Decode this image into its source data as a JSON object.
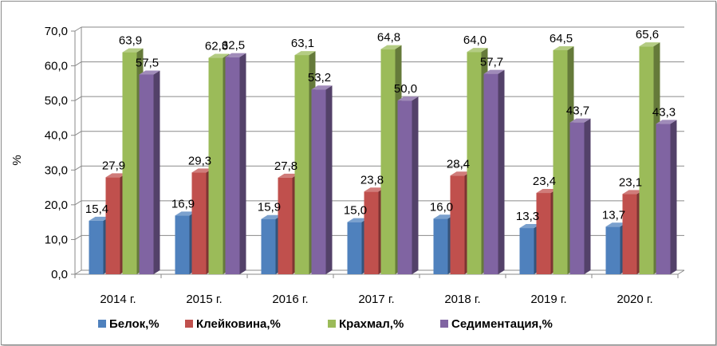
{
  "chart_data": {
    "type": "bar",
    "ylabel": "%",
    "ylim": [
      0,
      70
    ],
    "ytick_step": 10,
    "y_tick_labels": [
      "0,0",
      "10,0",
      "20,0",
      "30,0",
      "40,0",
      "50,0",
      "60,0",
      "70,0"
    ],
    "grid": true,
    "legend_position": "bottom",
    "categories": [
      "2014 г.",
      "2015 г.",
      "2016 г.",
      "2017 г.",
      "2018 г.",
      "2019 г.",
      "2020 г."
    ],
    "series": [
      {
        "name": "Белок,%",
        "color": "#4f81bd",
        "values": [
          15.4,
          16.9,
          15.9,
          15.0,
          16.0,
          13.3,
          13.7
        ],
        "labels": [
          "15,4",
          "16,9",
          "15,9",
          "15,0",
          "16,0",
          "13,3",
          "13,7"
        ]
      },
      {
        "name": "Клейковина,%",
        "color": "#c0504d",
        "values": [
          27.9,
          29.3,
          27.8,
          23.8,
          28.4,
          23.4,
          23.1
        ],
        "labels": [
          "27,9",
          "29,3",
          "27,8",
          "23,8",
          "28,4",
          "23,4",
          "23,1"
        ]
      },
      {
        "name": "Крахмал,%",
        "color": "#9bbb59",
        "values": [
          63.9,
          62.3,
          63.1,
          64.8,
          64.0,
          64.5,
          65.6
        ],
        "labels": [
          "63,9",
          "62,3",
          "63,1",
          "64,8",
          "64,0",
          "64,5",
          "65,6"
        ]
      },
      {
        "name": "Седиментация,%",
        "color": "#8064a2",
        "values": [
          57.5,
          62.5,
          53.2,
          50.0,
          57.7,
          43.7,
          43.3
        ],
        "labels": [
          "57,5",
          "62,5",
          "53,2",
          "50,0",
          "57,7",
          "43,7",
          "43,3"
        ]
      }
    ]
  }
}
